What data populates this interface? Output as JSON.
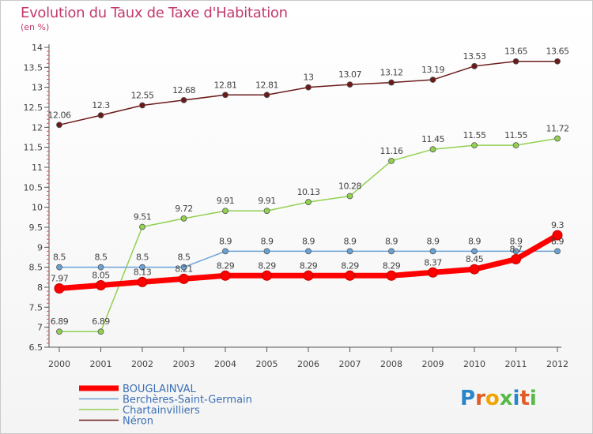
{
  "title": "Evolution du Taux de Taxe d'Habitation",
  "subtitle": "(en %)",
  "logo": "Proxiti",
  "chart_data": {
    "type": "line",
    "title": "Evolution du Taux de Taxe d'Habitation",
    "ylabel": "(en %)",
    "xlabel": "",
    "x": [
      "2000",
      "2001",
      "2002",
      "2003",
      "2004",
      "2005",
      "2006",
      "2007",
      "2008",
      "2009",
      "2010",
      "2011",
      "2012"
    ],
    "ylim": [
      6.5,
      14
    ],
    "yticks": [
      6.5,
      7,
      7.5,
      8,
      8.5,
      9,
      9.5,
      10,
      10.5,
      11,
      11.5,
      12,
      12.5,
      13,
      13.5,
      14
    ],
    "grid": false,
    "legend_placement": "bottom-left",
    "series": [
      {
        "name": "BOUGLAINVAL",
        "color": "#ff0000",
        "values": [
          7.97,
          8.05,
          8.13,
          8.21,
          8.29,
          8.29,
          8.29,
          8.29,
          8.29,
          8.37,
          8.45,
          8.7,
          9.3
        ],
        "labels": [
          "7.97",
          "8.05",
          "8.13",
          "8.21",
          "8.29",
          "8.29",
          "8.29",
          "8.29",
          "8.29",
          "8.37",
          "8.45",
          "8.7",
          "9.3"
        ]
      },
      {
        "name": "Berchères-Saint-Germain",
        "color": "#6aa2d6",
        "values": [
          8.5,
          8.5,
          8.5,
          8.5,
          8.9,
          8.9,
          8.9,
          8.9,
          8.9,
          8.9,
          8.9,
          8.9,
          8.9
        ],
        "labels": [
          "8.5",
          "8.5",
          "8.5",
          "8.5",
          "8.9",
          "8.9",
          "8.9",
          "8.9",
          "8.9",
          "8.9",
          "8.9",
          "8.9",
          "8.9"
        ]
      },
      {
        "name": "Chartainvilliers",
        "color": "#92d050",
        "values": [
          6.89,
          6.89,
          9.51,
          9.72,
          9.91,
          9.91,
          10.13,
          10.28,
          11.16,
          11.45,
          11.55,
          11.55,
          11.72
        ],
        "labels": [
          "6.89",
          "6.89",
          "9.51",
          "9.72",
          "9.91",
          "9.91",
          "10.13",
          "10.28",
          "11.16",
          "11.45",
          "11.55",
          "11.55",
          "11.72"
        ]
      },
      {
        "name": "Néron",
        "color": "#6b1a1a",
        "values": [
          12.06,
          12.3,
          12.55,
          12.68,
          12.81,
          12.81,
          13,
          13.07,
          13.12,
          13.19,
          13.53,
          13.65,
          13.65
        ],
        "labels": [
          "12.06",
          "12.3",
          "12.55",
          "12.68",
          "12.81",
          "12.81",
          "13",
          "13.07",
          "13.12",
          "13.19",
          "13.53",
          "13.65",
          "13.65"
        ]
      }
    ]
  }
}
